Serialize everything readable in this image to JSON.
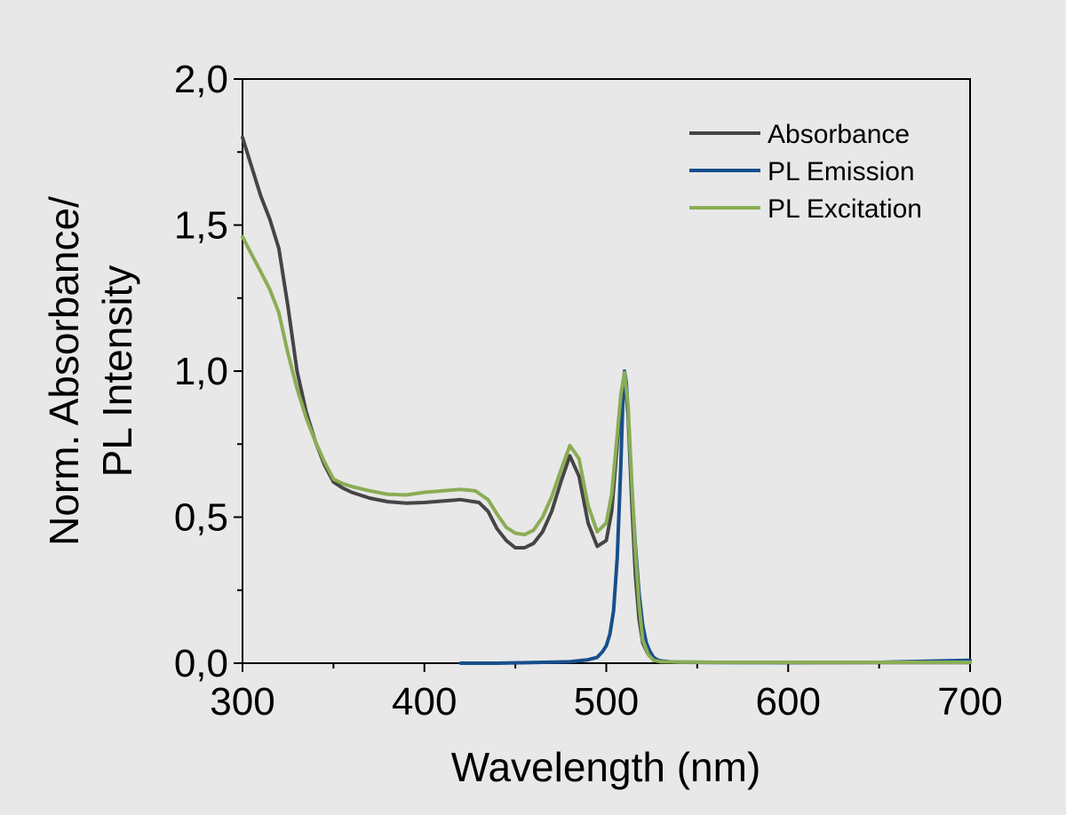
{
  "chart_data": {
    "type": "line",
    "title": "",
    "xlabel": "Wavelength (nm)",
    "ylabel_line1": "Norm. Absorbance/",
    "ylabel_line2": "PL Intensity",
    "xlim": [
      300,
      700
    ],
    "ylim": [
      0,
      2
    ],
    "x_ticks": [
      {
        "value": 300,
        "label": "300"
      },
      {
        "value": 400,
        "label": "400"
      },
      {
        "value": 500,
        "label": "500"
      },
      {
        "value": 600,
        "label": "600"
      },
      {
        "value": 700,
        "label": "700"
      }
    ],
    "y_ticks": [
      {
        "value": 0.0,
        "label": "0,0"
      },
      {
        "value": 0.5,
        "label": "0,5"
      },
      {
        "value": 1.0,
        "label": "1,0"
      },
      {
        "value": 1.5,
        "label": "1,5"
      },
      {
        "value": 2.0,
        "label": "2,0"
      }
    ],
    "grid": false,
    "legend_position": "top-right",
    "series": [
      {
        "name": "Absorbance",
        "color": "#454545",
        "x": [
          300,
          305,
          310,
          315,
          320,
          325,
          330,
          335,
          340,
          345,
          350,
          355,
          360,
          370,
          380,
          390,
          400,
          410,
          420,
          430,
          435,
          440,
          445,
          450,
          455,
          460,
          465,
          470,
          475,
          480,
          485,
          490,
          495,
          500,
          503,
          506,
          508,
          510,
          512,
          514,
          516,
          518,
          520,
          523,
          526,
          530,
          540,
          560,
          600,
          650,
          700
        ],
        "y": [
          1.8,
          1.7,
          1.6,
          1.52,
          1.42,
          1.22,
          1.0,
          0.86,
          0.76,
          0.68,
          0.62,
          0.6,
          0.585,
          0.565,
          0.553,
          0.548,
          0.55,
          0.555,
          0.56,
          0.55,
          0.52,
          0.46,
          0.42,
          0.395,
          0.395,
          0.41,
          0.45,
          0.52,
          0.62,
          0.71,
          0.64,
          0.48,
          0.4,
          0.42,
          0.52,
          0.75,
          0.9,
          0.99,
          0.85,
          0.55,
          0.3,
          0.15,
          0.07,
          0.03,
          0.012,
          0.005,
          0.004,
          0.003,
          0.002,
          0.002,
          0.002
        ]
      },
      {
        "name": "PL Emission",
        "color": "#174f8c",
        "x": [
          420,
          440,
          460,
          480,
          490,
          495,
          498,
          500,
          502,
          504,
          506,
          508,
          509,
          510,
          511,
          512,
          514,
          516,
          518,
          520,
          522,
          524,
          526,
          528,
          530,
          535,
          540,
          560,
          600,
          650,
          700
        ],
        "y": [
          0.0,
          0.0,
          0.002,
          0.005,
          0.012,
          0.02,
          0.04,
          0.06,
          0.1,
          0.18,
          0.36,
          0.68,
          0.88,
          1.0,
          0.96,
          0.86,
          0.6,
          0.4,
          0.24,
          0.13,
          0.07,
          0.04,
          0.02,
          0.012,
          0.008,
          0.005,
          0.003,
          0.002,
          0.002,
          0.003,
          0.01
        ]
      },
      {
        "name": "PL Excitation",
        "color": "#8aad55",
        "x": [
          300,
          305,
          310,
          315,
          320,
          325,
          330,
          335,
          340,
          345,
          350,
          355,
          360,
          370,
          380,
          390,
          400,
          410,
          420,
          428,
          435,
          440,
          445,
          450,
          455,
          460,
          465,
          470,
          475,
          480,
          485,
          490,
          495,
          500,
          503,
          506,
          508,
          510,
          512,
          514,
          516,
          518,
          520,
          523,
          526,
          530,
          540,
          560,
          600,
          650,
          700
        ],
        "y": [
          1.46,
          1.4,
          1.34,
          1.28,
          1.2,
          1.06,
          0.94,
          0.84,
          0.76,
          0.69,
          0.63,
          0.615,
          0.605,
          0.59,
          0.578,
          0.576,
          0.585,
          0.59,
          0.595,
          0.59,
          0.56,
          0.51,
          0.465,
          0.445,
          0.44,
          0.455,
          0.5,
          0.57,
          0.66,
          0.745,
          0.7,
          0.54,
          0.45,
          0.48,
          0.58,
          0.78,
          0.92,
          0.995,
          0.88,
          0.62,
          0.38,
          0.2,
          0.08,
          0.03,
          0.01,
          0.005,
          0.004,
          0.003,
          0.003,
          0.003,
          0.003
        ]
      }
    ]
  }
}
